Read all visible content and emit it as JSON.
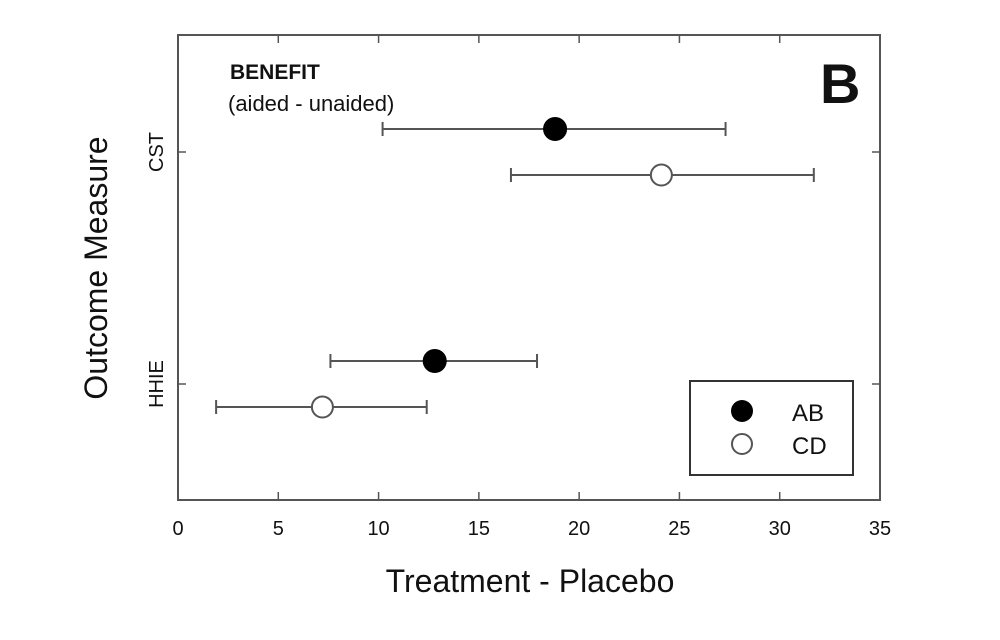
{
  "chart_data": {
    "type": "scatter",
    "subtype": "forest-plot-with-error-bars",
    "panel_label": "B",
    "annotation_title": "BENEFIT",
    "annotation_subtitle": "(aided - unaided)",
    "xlabel": "Treatment - Placebo",
    "ylabel": "Outcome Measure",
    "xlim": [
      0,
      35
    ],
    "xticks": [
      "0",
      "5",
      "10",
      "15",
      "20",
      "25",
      "30",
      "35"
    ],
    "categories": [
      "CST",
      "HHIE"
    ],
    "legend_position": "bottom-right",
    "series": [
      {
        "name": "AB",
        "marker": "filled-circle",
        "color": "#000000",
        "points": [
          {
            "category": "CST",
            "value": 18.8,
            "low": 10.2,
            "high": 27.3
          },
          {
            "category": "HHIE",
            "value": 12.8,
            "low": 7.6,
            "high": 17.9
          }
        ]
      },
      {
        "name": "CD",
        "marker": "open-circle",
        "color": "#ffffff",
        "points": [
          {
            "category": "CST",
            "value": 24.1,
            "low": 16.6,
            "high": 31.7
          },
          {
            "category": "HHIE",
            "value": 7.2,
            "low": 1.9,
            "high": 12.4
          }
        ]
      }
    ]
  }
}
